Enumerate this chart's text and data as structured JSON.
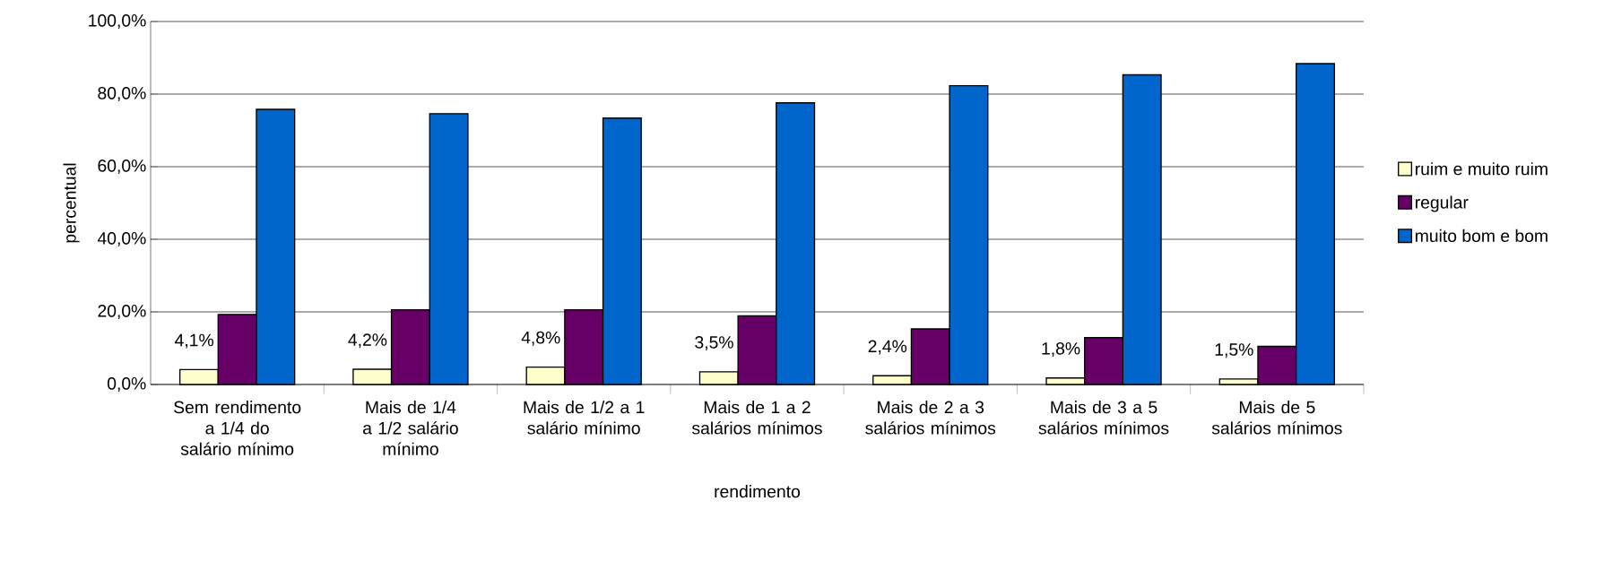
{
  "chart_data": {
    "type": "bar",
    "xlabel": "rendimento",
    "ylabel": "percentual",
    "categories": [
      "Sem rendimento a 1/4 do salário mínimo",
      "Mais de 1/4 a 1/2 salário mínimo",
      "Mais de 1/2 a 1 salário mínimo",
      "Mais de 1 a 2 salários mínimos",
      "Mais de 2 a 3 salários mínimos",
      "Mais de 3 a 5 salários mínimos",
      "Mais de 5 salários mínimos"
    ],
    "series": [
      {
        "name": "ruim e muito ruim",
        "color": "#ffffcc",
        "values": [
          4.1,
          4.2,
          4.8,
          3.5,
          2.4,
          1.8,
          1.5
        ],
        "value_labels": [
          "4,1%",
          "4,2%",
          "4,8%",
          "3,5%",
          "2,4%",
          "1,8%",
          "1,5%"
        ]
      },
      {
        "name": "regular",
        "color": "#660066",
        "values": [
          19.3,
          20.6,
          20.6,
          18.9,
          15.3,
          12.9,
          10.5
        ]
      },
      {
        "name": "muito bom e bom",
        "color": "#0066cc",
        "values": [
          75.8,
          74.6,
          73.4,
          77.6,
          82.3,
          85.3,
          88.4
        ]
      }
    ],
    "ylim": [
      0,
      100
    ],
    "yticks": [
      {
        "value": 0,
        "label": "0,0%"
      },
      {
        "value": 20,
        "label": "20,0%"
      },
      {
        "value": 40,
        "label": "40,0%"
      },
      {
        "value": 60,
        "label": "60,0%"
      },
      {
        "value": 80,
        "label": "80,0%"
      },
      {
        "value": 100,
        "label": "100,0%"
      }
    ],
    "grid": "y",
    "legend": "right"
  }
}
